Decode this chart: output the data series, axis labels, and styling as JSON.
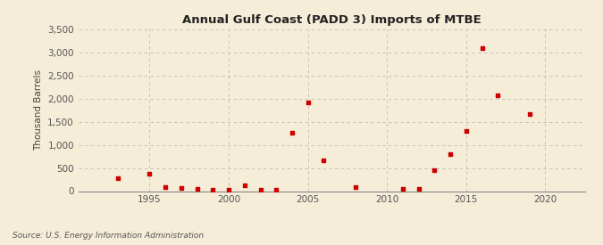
{
  "title": "Annual Gulf Coast (PADD 3) Imports of MTBE",
  "ylabel": "Thousand Barrels",
  "source": "Source: U.S. Energy Information Administration",
  "background_color": "#f5edd8",
  "plot_background_color": "#f5edd8",
  "marker_color": "#cc0000",
  "grid_color": "#bbbbbb",
  "xlim": [
    1990.5,
    2022.5
  ],
  "ylim": [
    0,
    3500
  ],
  "yticks": [
    0,
    500,
    1000,
    1500,
    2000,
    2500,
    3000,
    3500
  ],
  "xticks": [
    1995,
    2000,
    2005,
    2010,
    2015,
    2020
  ],
  "years": [
    1993,
    1995,
    1996,
    1997,
    1998,
    1999,
    2000,
    2001,
    2002,
    2003,
    2004,
    2005,
    2006,
    2008,
    2011,
    2012,
    2013,
    2014,
    2015,
    2016,
    2017,
    2019
  ],
  "values": [
    270,
    370,
    80,
    70,
    50,
    30,
    20,
    120,
    30,
    20,
    1260,
    1920,
    670,
    90,
    50,
    55,
    460,
    800,
    1310,
    3090,
    2080,
    1660
  ]
}
